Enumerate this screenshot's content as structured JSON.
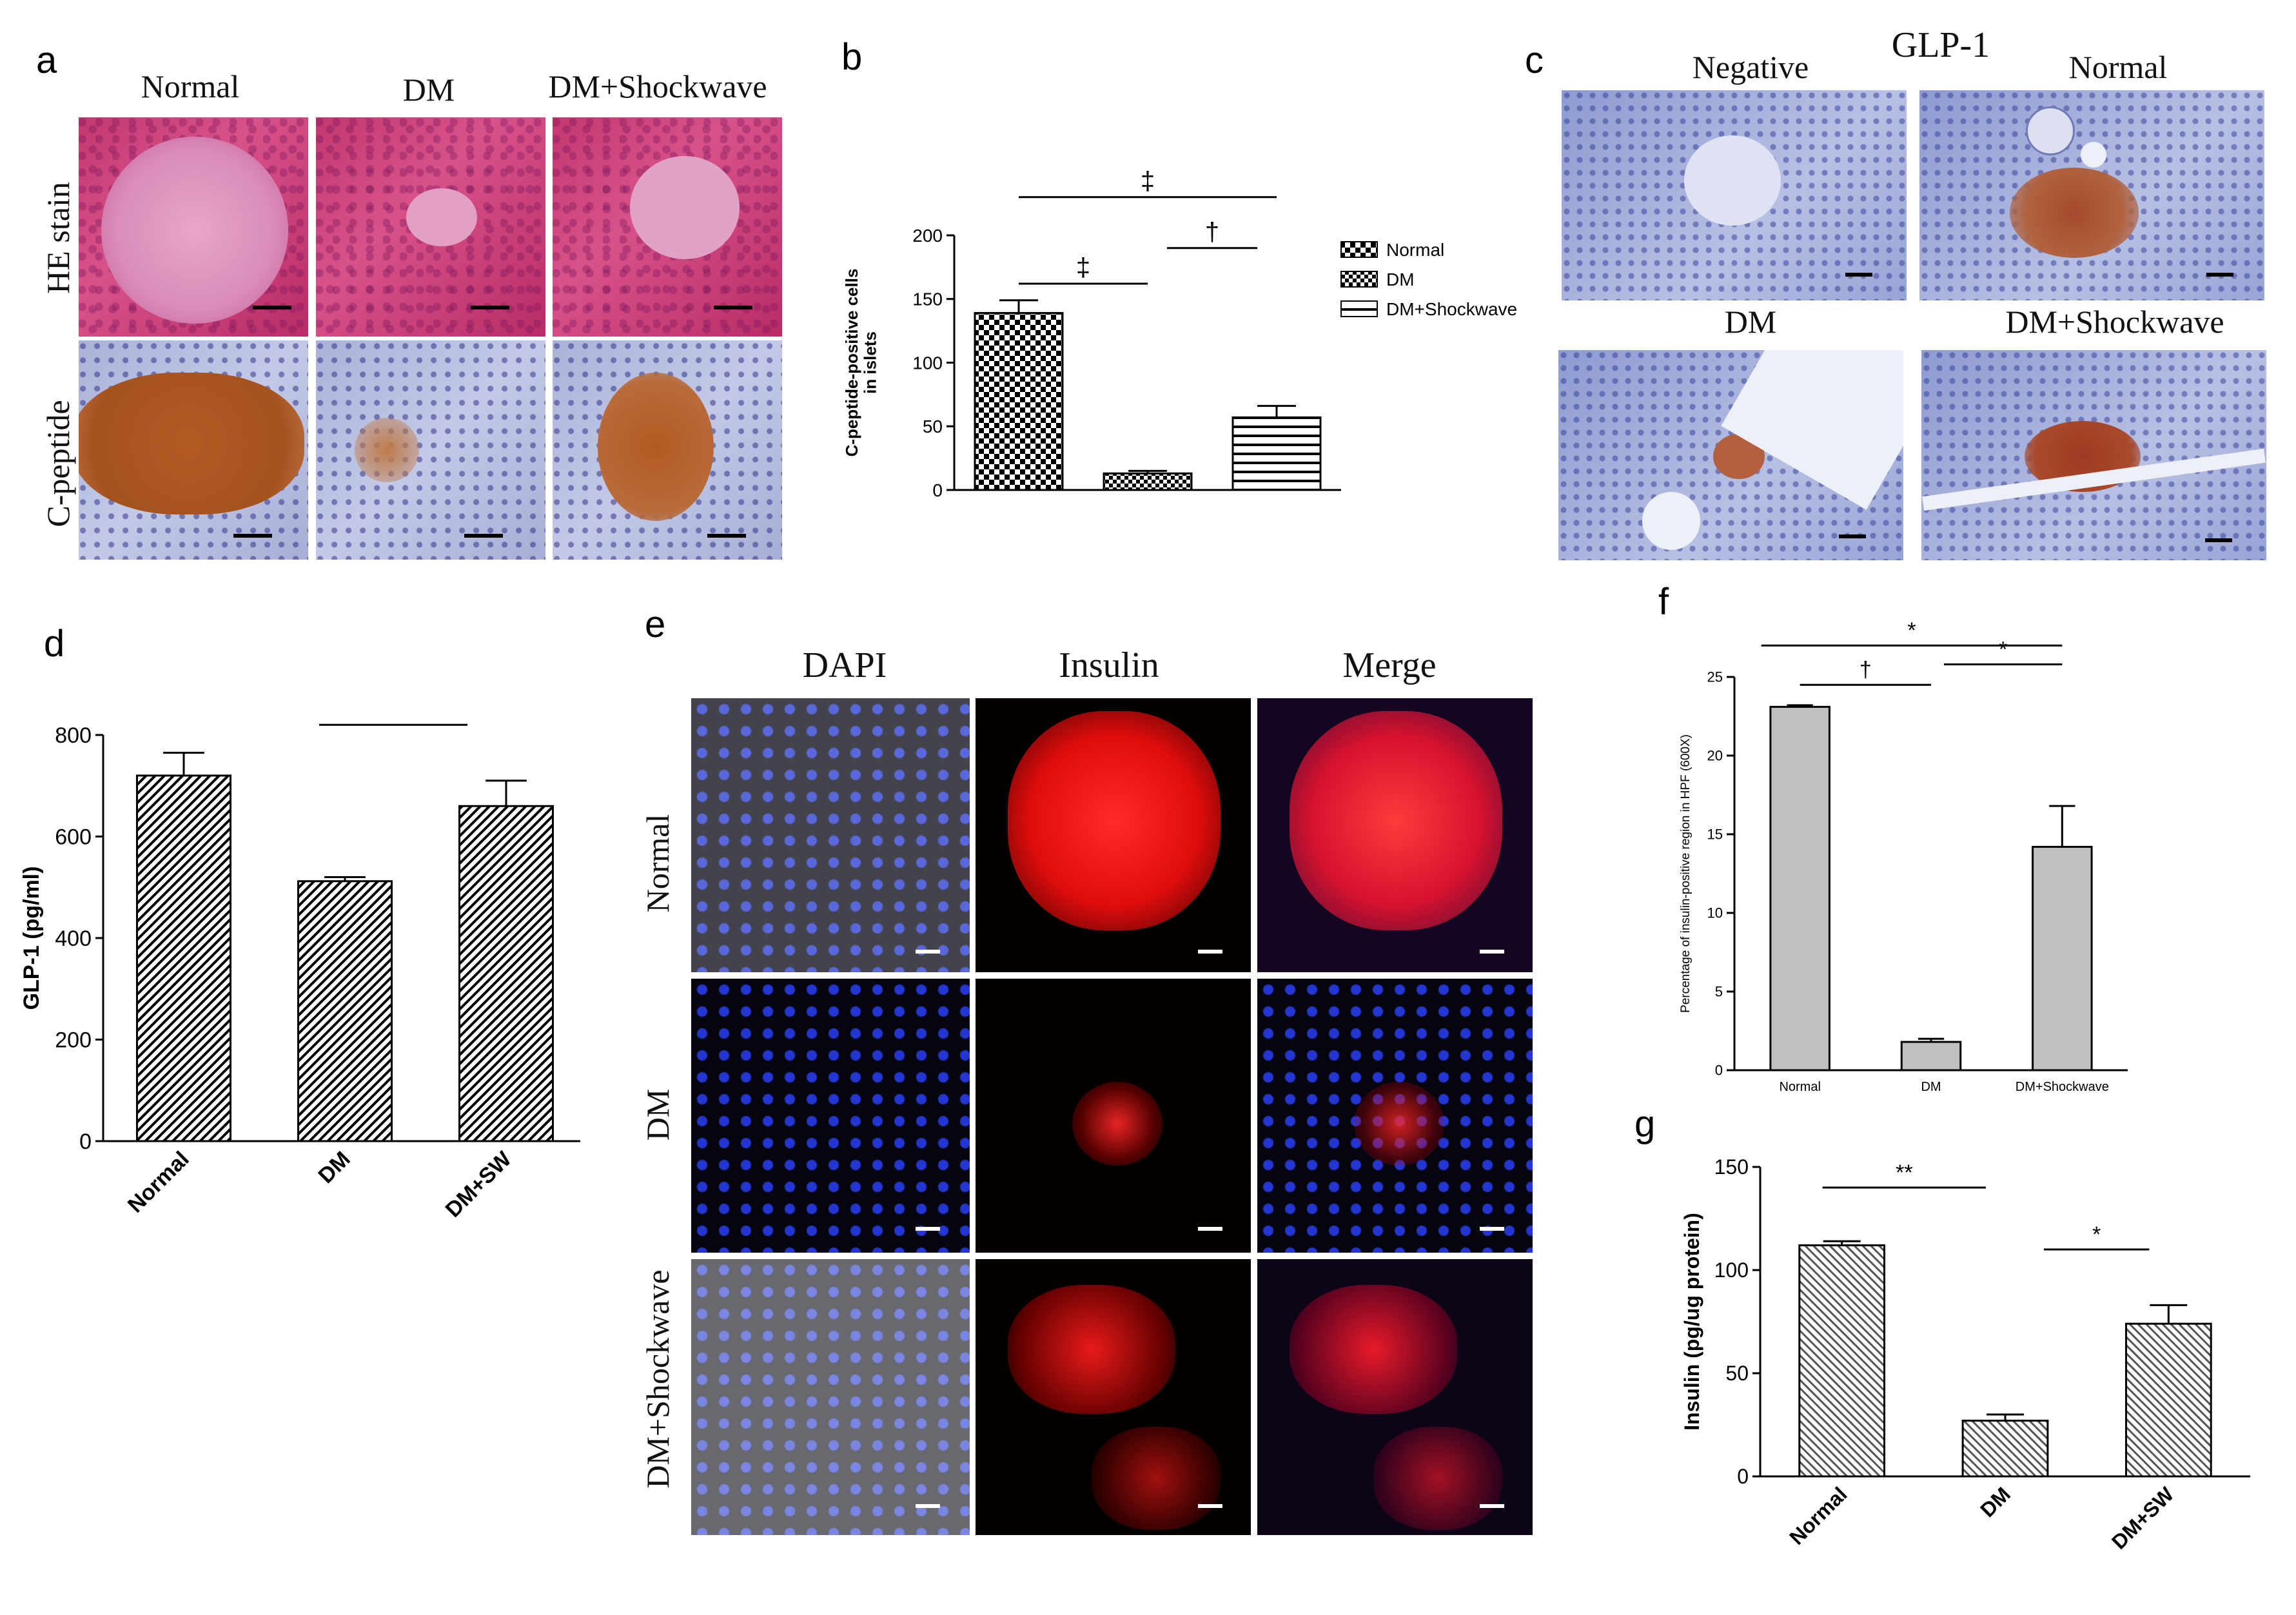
{
  "panel_letters": {
    "a": "a",
    "b": "b",
    "c": "c",
    "d": "d",
    "e": "e",
    "f": "f",
    "g": "g"
  },
  "panel_a": {
    "columns": [
      "Normal",
      "DM",
      "DM+Shockwave"
    ],
    "rows": [
      "HE stain",
      "C-peptide"
    ]
  },
  "panel_c": {
    "title": "GLP-1",
    "labels": [
      "Negative",
      "Normal",
      "DM",
      "DM+Shockwave"
    ]
  },
  "panel_e": {
    "columns": [
      "DAPI",
      "Insulin",
      "Merge"
    ],
    "rows": [
      "Normal",
      "DM",
      "DM+Shockwave"
    ]
  },
  "chart_data": [
    {
      "panel": "b",
      "type": "bar",
      "categories": [
        "Normal",
        "DM",
        "DM+Shockwave"
      ],
      "values": [
        139,
        13,
        57
      ],
      "errors": [
        10,
        2,
        9
      ],
      "ylabel": "C-peptide-positive cells in islets",
      "ylim": [
        0,
        200
      ],
      "yticks": [
        "0",
        "50",
        "100",
        "150",
        "200"
      ],
      "legend": [
        "Normal",
        "DM",
        "DM+Shockwave"
      ],
      "significance": [
        "‡",
        "‡",
        "†"
      ]
    },
    {
      "panel": "d",
      "type": "bar",
      "categories": [
        "Normal",
        "DM",
        "DM+SW"
      ],
      "values": [
        720,
        512,
        660
      ],
      "errors": [
        45,
        8,
        50
      ],
      "ylabel": "GLP-1 (pg/ml)",
      "ylim": [
        0,
        800
      ],
      "yticks": [
        "0",
        "200",
        "400",
        "600",
        "800"
      ],
      "significance": [
        "*",
        "*"
      ]
    },
    {
      "panel": "f",
      "type": "bar",
      "categories": [
        "Normal",
        "DM",
        "DM+Shockwave"
      ],
      "values": [
        23.1,
        1.8,
        14.2
      ],
      "errors": [
        0.1,
        0.2,
        2.6
      ],
      "ylabel": "Percentage of insulin-positive region in HPF (600X)",
      "ylim": [
        0,
        25
      ],
      "yticks": [
        "0",
        "5",
        "10",
        "15",
        "20",
        "25"
      ],
      "significance": [
        "*",
        "*",
        "†"
      ]
    },
    {
      "panel": "g",
      "type": "bar",
      "categories": [
        "Normal",
        "DM",
        "DM+SW"
      ],
      "values": [
        112,
        27,
        74
      ],
      "errors": [
        2,
        3,
        9
      ],
      "ylabel": "Insulin (pg/ug protein)",
      "ylim": [
        0,
        150
      ],
      "yticks": [
        "0",
        "50",
        "100",
        "150"
      ],
      "significance": [
        "**",
        "*"
      ]
    }
  ]
}
